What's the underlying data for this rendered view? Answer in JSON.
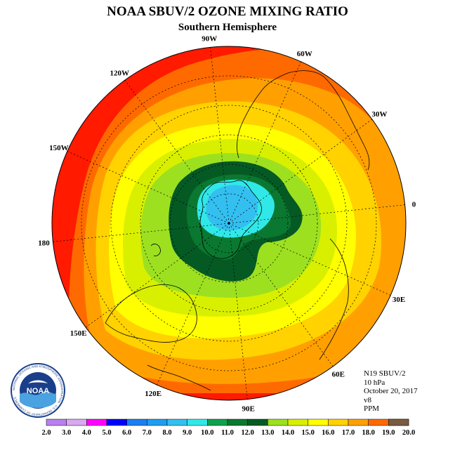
{
  "title": "NOAA SBUV/2 OZONE MIXING RATIO",
  "subtitle": "Southern Hemisphere",
  "meta": {
    "satellite": "N19 SBUV/2",
    "level": "10 hPa",
    "date": "October 20, 2017",
    "version": "v8",
    "units": "PPM"
  },
  "logo": {
    "text": "NOAA",
    "ring_text": "NATIONAL OCEANIC AND ATMOSPHERIC ADMINISTRATION · U.S. DEPARTMENT OF COMMERCE"
  },
  "longitude_labels": [
    "90W",
    "60W",
    "30W",
    "0",
    "30E",
    "60E",
    "90E",
    "120E",
    "150E",
    "180",
    "150W",
    "120W"
  ],
  "colorbar": {
    "values": [
      "2.0",
      "3.0",
      "4.0",
      "5.0",
      "6.0",
      "7.0",
      "8.0",
      "9.0",
      "10.0",
      "11.0",
      "12.0",
      "13.0",
      "14.0",
      "15.0",
      "16.0",
      "17.0",
      "18.0",
      "19.0",
      "20.0"
    ],
    "colors": [
      "#b87ff0",
      "#d8a8f0",
      "#ff00ff",
      "#0000ff",
      "#1a7ff0",
      "#1e9ef0",
      "#33bff0",
      "#30e8e8",
      "#0fa050",
      "#0a7830",
      "#055a24",
      "#9de020",
      "#d8f000",
      "#ffff00",
      "#ffd200",
      "#ffa000",
      "#ff6a00",
      "#ff1a00",
      "#7a5a40"
    ]
  },
  "map_colors": {
    "c10": "#30e8e8",
    "c9": "#33bff0",
    "c11": "#0a7830",
    "c12": "#055a24",
    "c13": "#9de020",
    "c14": "#d8f000",
    "c15": "#ffff00",
    "c16": "#ffd200",
    "c17": "#ffa000",
    "c18": "#ff6a00",
    "c19": "#ff1a00"
  }
}
